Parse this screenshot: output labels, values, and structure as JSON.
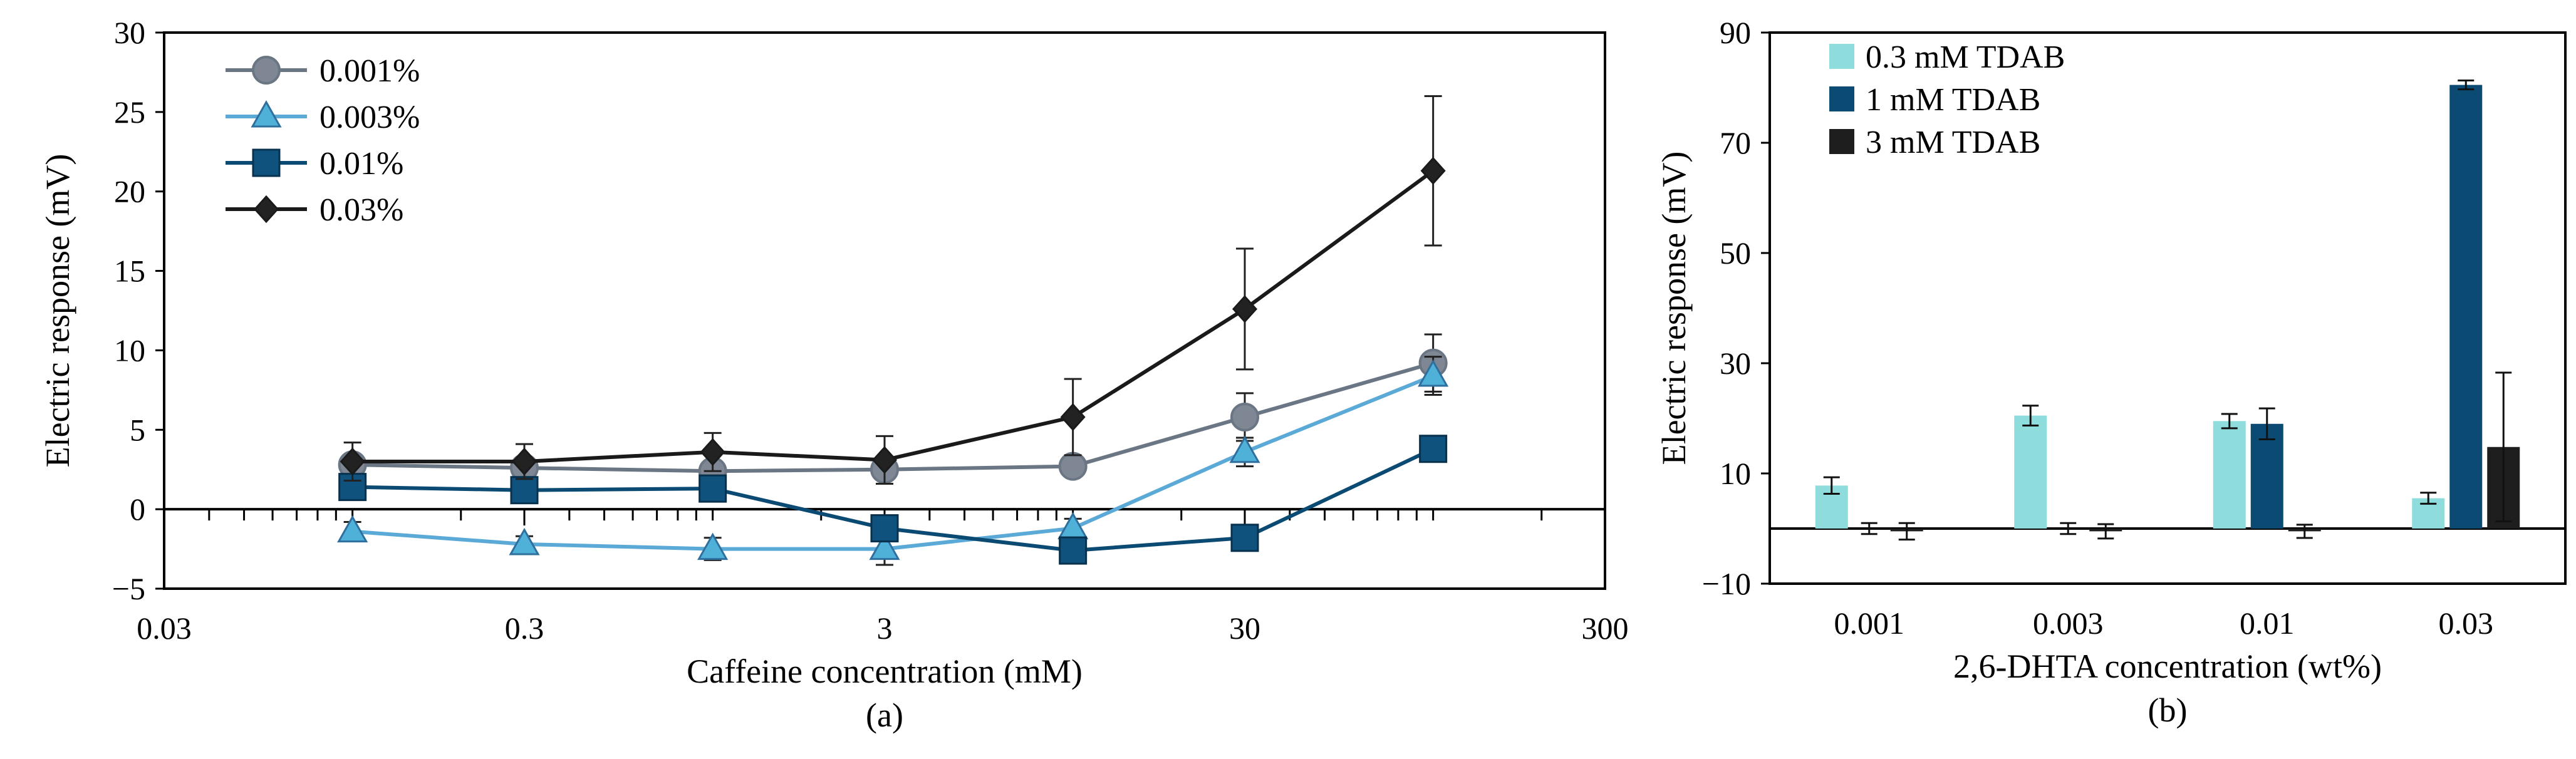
{
  "chart_data": [
    {
      "type": "line",
      "panel_label": "(a)",
      "title": "",
      "xlabel": "Caffeine concentration (mM)",
      "ylabel": "Electric response (mV)",
      "xscale": "log",
      "xlim": [
        0.03,
        300
      ],
      "ylim": [
        -5,
        30
      ],
      "x_ticks": [
        0.03,
        0.3,
        3,
        30,
        300
      ],
      "x_tick_labels": [
        "0.03",
        "0.3",
        "3",
        "30",
        "300"
      ],
      "y_ticks": [
        -5,
        0,
        5,
        10,
        15,
        20,
        25,
        30
      ],
      "y_tick_labels": [
        "−5",
        "0",
        "5",
        "10",
        "15",
        "20",
        "25",
        "30"
      ],
      "x": [
        0.1,
        0.3,
        1,
        3,
        10,
        30,
        100
      ],
      "legend_position": "top-left",
      "series": [
        {
          "name": "0.001%",
          "marker": "circle",
          "color": "#6b7684",
          "fill": "#7f8794",
          "values": [
            2.8,
            2.6,
            2.4,
            2.5,
            2.7,
            5.8,
            9.2
          ],
          "errors": [
            0.6,
            0.5,
            0.6,
            0.6,
            0.5,
            1.5,
            1.8
          ]
        },
        {
          "name": "0.003%",
          "marker": "triangle",
          "color": "#5aa9d6",
          "fill": "#4fb0d8",
          "values": [
            -1.4,
            -2.2,
            -2.5,
            -2.5,
            -1.2,
            3.6,
            8.4
          ],
          "errors": [
            0.6,
            0.5,
            0.7,
            1.0,
            0.6,
            0.9,
            1.2
          ]
        },
        {
          "name": "0.01%",
          "marker": "square",
          "color": "#0b4a72",
          "fill": "#0f527e",
          "values": [
            1.4,
            1.2,
            1.3,
            -1.2,
            -2.6,
            -1.8,
            3.8
          ],
          "errors": [
            0.3,
            0.3,
            0.3,
            0.3,
            0.3,
            0.3,
            0.3
          ]
        },
        {
          "name": "0.03%",
          "marker": "diamond",
          "color": "#1a1a1a",
          "fill": "#222222",
          "values": [
            3.0,
            3.0,
            3.6,
            3.1,
            5.8,
            12.6,
            21.3
          ],
          "errors": [
            1.2,
            1.1,
            1.2,
            1.5,
            2.4,
            3.8,
            4.7
          ]
        }
      ]
    },
    {
      "type": "bar",
      "panel_label": "(b)",
      "title": "",
      "xlabel": "2,6-DHTA concentration (wt%)",
      "ylabel": "Electric response (mV)",
      "ylim": [
        -10,
        90
      ],
      "y_ticks": [
        -10,
        10,
        30,
        50,
        70,
        90
      ],
      "y_tick_labels": [
        "−10",
        "10",
        "30",
        "50",
        "70",
        "90"
      ],
      "categories": [
        "0.001",
        "0.003",
        "0.01",
        "0.03"
      ],
      "legend_position": "top-left",
      "series": [
        {
          "name": "0.3 mM TDAB",
          "color": "#8fdcdc",
          "values": [
            7.8,
            20.5,
            19.5,
            5.5
          ],
          "errors": [
            1.5,
            1.8,
            1.3,
            1.0
          ]
        },
        {
          "name": "1 mM TDAB",
          "color": "#0b4a72",
          "values": [
            0,
            0,
            19.0,
            80.5
          ],
          "errors": [
            1.0,
            1.0,
            2.8,
            0.8
          ]
        },
        {
          "name": "3 mM TDAB",
          "color": "#1e1e1e",
          "values": [
            -0.5,
            -0.5,
            -0.5,
            14.8
          ],
          "errors": [
            1.5,
            1.3,
            1.2,
            13.5
          ]
        }
      ]
    }
  ]
}
